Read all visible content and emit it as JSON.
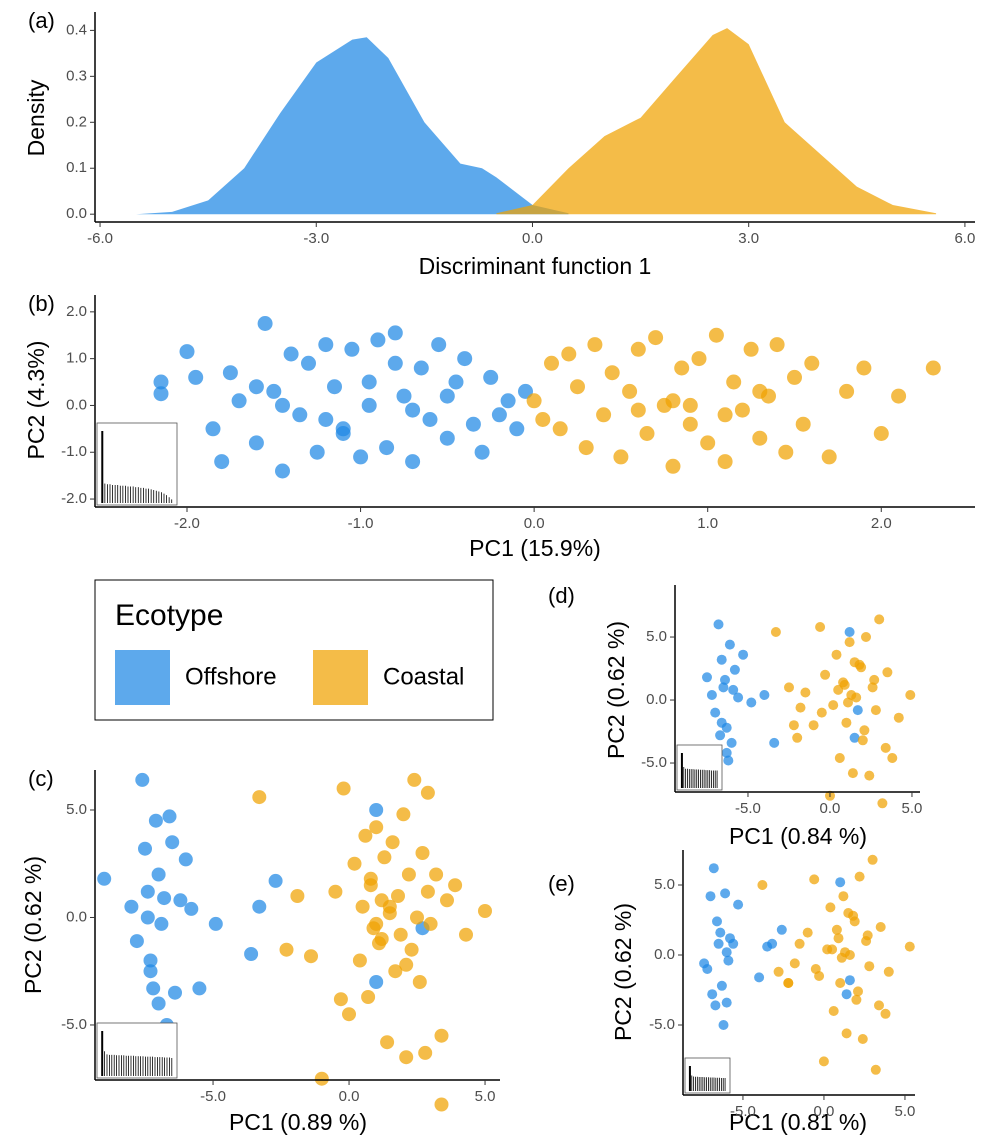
{
  "chart_data": [
    {
      "type": "area",
      "panel": "(a)",
      "x_label": "Discriminant function 1",
      "y_label": "Density",
      "legend_title": "Ecotype",
      "xlim": [
        -6.07,
        6.14
      ],
      "ylim": [
        -0.017,
        0.44
      ],
      "xticks": [
        {
          "value": -6,
          "label": "-6.0"
        },
        {
          "value": -3,
          "label": "-3.0"
        },
        {
          "value": 0,
          "label": "0.0"
        },
        {
          "value": 3,
          "label": "3.0"
        },
        {
          "value": 6,
          "label": "6.0"
        }
      ],
      "yticks": [
        {
          "value": 0,
          "label": "0.0"
        },
        {
          "value": 0.1,
          "label": "0.1"
        },
        {
          "value": 0.2,
          "label": "0.2"
        },
        {
          "value": 0.3,
          "label": "0.3"
        },
        {
          "value": 0.4,
          "label": "0.4"
        }
      ],
      "series": [
        {
          "name": "Offshore",
          "color": "#1E88E5",
          "x": [
            -5.5,
            -5,
            -4.5,
            -4,
            -3.5,
            -3,
            -2.5,
            -2.3,
            -2,
            -1.5,
            -1,
            -0.7,
            -0.5,
            0,
            0.5
          ],
          "values": [
            0,
            0.005,
            0.03,
            0.1,
            0.22,
            0.33,
            0.38,
            0.385,
            0.34,
            0.2,
            0.11,
            0.1,
            0.08,
            0.02,
            0.002
          ]
        },
        {
          "name": "Coastal",
          "color": "#F0A202",
          "x": [
            -0.5,
            0,
            0.5,
            1,
            1.5,
            2,
            2.5,
            2.7,
            3,
            3.5,
            4,
            4.5,
            5,
            5.6
          ],
          "values": [
            0.002,
            0.02,
            0.1,
            0.17,
            0.21,
            0.3,
            0.39,
            0.405,
            0.37,
            0.2,
            0.13,
            0.06,
            0.02,
            0.002
          ]
        }
      ]
    },
    {
      "type": "scatter",
      "panel": "(b)",
      "x_label": "PC1 (15.9%)",
      "y_label": "PC2 (4.3%)",
      "xlim": [
        -2.53,
        2.54
      ],
      "ylim": [
        -2.17,
        2.36
      ],
      "xticks": [
        {
          "value": -2,
          "label": "-2.0"
        },
        {
          "value": -1,
          "label": "-1.0"
        },
        {
          "value": 0,
          "label": "0.0"
        },
        {
          "value": 1,
          "label": "1.0"
        },
        {
          "value": 2,
          "label": "2.0"
        }
      ],
      "yticks": [
        {
          "value": -2,
          "label": "-2.0"
        },
        {
          "value": -1,
          "label": "-1.0"
        },
        {
          "value": 0,
          "label": "0.0"
        },
        {
          "value": 1,
          "label": "1.0"
        },
        {
          "value": 2,
          "label": "2.0"
        }
      ],
      "scree": [
        1,
        0.27,
        0.26,
        0.26,
        0.25,
        0.25,
        0.25,
        0.24,
        0.24,
        0.24,
        0.23,
        0.23,
        0.23,
        0.22,
        0.22,
        0.21,
        0.21,
        0.2,
        0.2,
        0.19,
        0.18,
        0.17,
        0.16,
        0.15,
        0.13,
        0.11,
        0.08,
        0.05
      ],
      "series": [
        {
          "name": "Offshore",
          "color": "#1E88E5",
          "x": [
            -2.15,
            -2.15,
            -2.0,
            -1.95,
            -1.85,
            -1.8,
            -1.75,
            -1.7,
            -1.6,
            -1.55,
            -1.5,
            -1.45,
            -1.4,
            -1.35,
            -1.3,
            -1.25,
            -1.2,
            -1.15,
            -1.1,
            -1.05,
            -1.0,
            -0.95,
            -0.9,
            -0.85,
            -0.8,
            -0.75,
            -0.7,
            -0.65,
            -0.6,
            -0.55,
            -0.5,
            -0.45,
            -0.4,
            -0.35,
            -0.3,
            -0.25,
            -0.2,
            -0.15,
            -0.1,
            -0.05,
            -1.45,
            -1.2,
            -0.95,
            -0.7,
            -0.5,
            -1.6,
            -1.1,
            -0.8
          ],
          "values": [
            0.5,
            0.25,
            1.15,
            0.6,
            -0.5,
            -1.2,
            0.7,
            0.1,
            -0.8,
            1.75,
            0.3,
            -1.4,
            1.1,
            -0.2,
            0.9,
            -1.0,
            1.3,
            0.4,
            -0.6,
            1.2,
            -1.1,
            0.0,
            1.4,
            -0.9,
            1.55,
            0.2,
            -1.2,
            0.8,
            -0.3,
            1.3,
            -0.7,
            0.5,
            1.0,
            -0.4,
            -1.0,
            0.6,
            -0.2,
            0.1,
            -0.5,
            0.3,
            0.0,
            -0.3,
            0.5,
            -0.1,
            0.2,
            0.4,
            -0.5,
            0.9
          ]
        },
        {
          "name": "Coastal",
          "color": "#F0A202",
          "x": [
            0.0,
            0.05,
            0.1,
            0.15,
            0.2,
            0.25,
            0.3,
            0.35,
            0.4,
            0.45,
            0.5,
            0.55,
            0.6,
            0.65,
            0.7,
            0.75,
            0.8,
            0.85,
            0.9,
            0.95,
            1.0,
            1.05,
            1.1,
            1.15,
            1.2,
            1.25,
            1.3,
            1.35,
            1.4,
            1.45,
            1.5,
            1.55,
            1.6,
            1.7,
            1.8,
            1.9,
            2.0,
            2.1,
            2.3,
            0.9,
            1.1,
            1.3,
            0.6,
            0.8
          ],
          "values": [
            0.1,
            -0.3,
            0.9,
            -0.5,
            1.1,
            0.4,
            -0.9,
            1.3,
            -0.2,
            0.7,
            -1.1,
            0.3,
            1.2,
            -0.6,
            1.45,
            0.0,
            -1.3,
            0.8,
            -0.4,
            1.0,
            -0.8,
            1.5,
            -1.2,
            0.5,
            -0.1,
            1.2,
            -0.7,
            0.2,
            1.3,
            -1.0,
            0.6,
            -0.4,
            0.9,
            -1.1,
            0.3,
            0.8,
            -0.6,
            0.2,
            0.8,
            0.0,
            -0.2,
            0.3,
            -0.1,
            0.1
          ]
        }
      ]
    },
    {
      "type": "scatter",
      "panel": "(c)",
      "x_label": "PC1 (0.89 %)",
      "y_label": "PC2 (0.62 %)",
      "xlim": [
        -9.34,
        5.55
      ],
      "ylim": [
        -7.56,
        6.86
      ],
      "xticks": [
        {
          "value": -5,
          "label": "-5.0"
        },
        {
          "value": 0,
          "label": "0.0"
        },
        {
          "value": 5,
          "label": "5.0"
        }
      ],
      "yticks": [
        {
          "value": -5,
          "label": "-5.0"
        },
        {
          "value": 0,
          "label": "0.0"
        },
        {
          "value": 5,
          "label": "5.0"
        }
      ],
      "scree": [
        1,
        0.55,
        0.48,
        0.47,
        0.47,
        0.47,
        0.46,
        0.46,
        0.46,
        0.46,
        0.45,
        0.45,
        0.45,
        0.45,
        0.44,
        0.44,
        0.44,
        0.44,
        0.43,
        0.43,
        0.43,
        0.43,
        0.42,
        0.42,
        0.42,
        0.42,
        0.41,
        0.41,
        0.41,
        0.4
      ],
      "series": [
        {
          "name": "Offshore",
          "color": "#1E88E5",
          "x": [
            -9.0,
            -8.0,
            -7.8,
            -7.6,
            -7.5,
            -7.4,
            -7.3,
            -7.2,
            -7.1,
            -7.0,
            -6.9,
            -6.8,
            -6.6,
            -6.5,
            -6.4,
            -6.2,
            -6.0,
            -5.8,
            -5.5,
            -4.9,
            -3.3,
            -2.7,
            -3.6,
            1.0,
            1.0,
            2.7,
            -7.3,
            -7.0,
            -6.7,
            -7.4
          ],
          "values": [
            1.8,
            0.5,
            -1.1,
            6.4,
            3.2,
            1.2,
            -2.0,
            -3.3,
            4.5,
            2.0,
            -0.3,
            0.9,
            4.7,
            3.5,
            -3.5,
            0.8,
            2.7,
            0.4,
            -3.3,
            -0.3,
            0.5,
            1.7,
            -1.7,
            5.0,
            -3.0,
            -0.5,
            -2.5,
            -4.0,
            -5.0,
            0.0
          ]
        },
        {
          "name": "Coastal",
          "color": "#F0A202",
          "x": [
            -3.3,
            -1.9,
            -1.4,
            -1.0,
            -0.5,
            -0.2,
            0.0,
            0.2,
            0.4,
            0.5,
            0.6,
            0.7,
            0.8,
            0.9,
            1.0,
            1.1,
            1.2,
            1.3,
            1.4,
            1.5,
            1.6,
            1.7,
            1.8,
            1.9,
            2.0,
            2.1,
            2.2,
            2.3,
            2.4,
            2.5,
            2.6,
            2.7,
            2.8,
            2.9,
            3.0,
            3.2,
            3.4,
            3.6,
            3.9,
            4.3,
            5.0,
            -0.3,
            1.2,
            1.5,
            2.1,
            0.8,
            1.0,
            2.9,
            3.4,
            -2.3
          ],
          "values": [
            5.6,
            1.0,
            -1.8,
            -7.5,
            1.2,
            6.0,
            -4.5,
            2.5,
            -2.0,
            0.5,
            3.8,
            -3.7,
            1.5,
            -0.5,
            4.2,
            -1.2,
            0.8,
            2.8,
            -5.8,
            0.2,
            3.5,
            -2.5,
            1.0,
            -0.8,
            4.8,
            -6.5,
            2.0,
            -1.5,
            6.4,
            0.0,
            -3.0,
            3.0,
            -6.3,
            1.2,
            -0.3,
            2.0,
            -8.7,
            0.8,
            1.5,
            -0.8,
            0.3,
            -3.8,
            -1.0,
            0.5,
            -2.2,
            1.8,
            -0.3,
            5.8,
            -5.5,
            -1.5
          ]
        }
      ]
    },
    {
      "type": "scatter",
      "panel": "(d)",
      "x_label": "PC1 (0.84 %)",
      "y_label": "PC2 (0.62 %)",
      "xlim": [
        -9.45,
        5.49
      ],
      "ylim": [
        -7.3,
        9.13
      ],
      "xticks": [
        {
          "value": -5,
          "label": "-5.0"
        },
        {
          "value": 0,
          "label": "0.0"
        },
        {
          "value": 5,
          "label": "5.0"
        }
      ],
      "yticks": [
        {
          "value": -5,
          "label": "-5.0"
        },
        {
          "value": 0,
          "label": "0.0"
        },
        {
          "value": 5,
          "label": "5.0"
        }
      ],
      "scree": [
        1,
        0.6,
        0.55,
        0.55,
        0.54,
        0.54,
        0.54,
        0.53,
        0.53,
        0.53,
        0.52,
        0.52,
        0.52,
        0.51,
        0.51,
        0.51,
        0.5,
        0.5,
        0.5,
        0.5
      ],
      "series": [
        {
          "name": "Offshore",
          "color": "#1E88E5",
          "x": [
            -7.5,
            -7.2,
            -7.0,
            -6.8,
            -6.6,
            -6.5,
            -6.3,
            -6.1,
            -6.0,
            -5.8,
            -5.6,
            -5.3,
            -4.8,
            -4.0,
            -3.4,
            -7.0,
            -6.7,
            -6.4,
            -6.2,
            -5.9,
            1.2,
            1.7,
            1.5,
            -6.6,
            -6.3
          ],
          "values": [
            1.8,
            0.4,
            -1.0,
            6.0,
            3.2,
            1.0,
            -2.2,
            4.4,
            -3.4,
            2.4,
            0.2,
            3.6,
            -0.2,
            0.4,
            -3.4,
            -4.2,
            -2.8,
            1.6,
            -4.8,
            0.8,
            5.4,
            -0.8,
            -3.0,
            -1.8,
            -4.2
          ]
        },
        {
          "name": "Coastal",
          "color": "#F0A202",
          "x": [
            -3.3,
            -2.5,
            -2.0,
            -1.5,
            -1.0,
            -0.6,
            -0.3,
            0.0,
            0.2,
            0.4,
            0.6,
            0.8,
            1.0,
            1.2,
            1.4,
            1.6,
            1.8,
            2.0,
            2.2,
            2.4,
            2.6,
            2.8,
            3.0,
            3.2,
            3.5,
            3.8,
            4.2,
            4.9,
            -0.5,
            0.5,
            1.1,
            1.5,
            2.1,
            2.7,
            -1.8,
            0.9,
            1.3,
            3.4,
            -2.2,
            1.9
          ],
          "values": [
            5.4,
            1.0,
            -3.0,
            0.6,
            -2.0,
            5.8,
            2.0,
            -7.6,
            -0.4,
            3.6,
            -4.6,
            1.4,
            -1.8,
            4.6,
            -5.8,
            0.2,
            2.8,
            -3.2,
            5.0,
            -6.0,
            1.0,
            -0.8,
            6.4,
            -8.2,
            2.2,
            -4.6,
            -1.4,
            0.4,
            -1.0,
            0.8,
            -0.2,
            3.0,
            -2.4,
            1.6,
            -0.6,
            1.2,
            0.4,
            -3.8,
            -2.0,
            2.6
          ]
        }
      ]
    },
    {
      "type": "scatter",
      "panel": "(e)",
      "x_label": "PC1 (0.81 %)",
      "y_label": "PC2 (0.62 %)",
      "xlim": [
        -8.7,
        5.62
      ],
      "ylim": [
        -10,
        7.5
      ],
      "xticks": [
        {
          "value": -5,
          "label": "-5.0"
        },
        {
          "value": 0,
          "label": "0.0"
        },
        {
          "value": 5,
          "label": "5.0"
        }
      ],
      "yticks": [
        {
          "value": -5,
          "label": "-5.0"
        },
        {
          "value": 0,
          "label": "0.0"
        },
        {
          "value": 5,
          "label": "5.0"
        }
      ],
      "scree": [
        1,
        0.62,
        0.58,
        0.57,
        0.57,
        0.56,
        0.56,
        0.56,
        0.55,
        0.55,
        0.55,
        0.54,
        0.54,
        0.54,
        0.53,
        0.53,
        0.53,
        0.52,
        0.52,
        0.52
      ],
      "series": [
        {
          "name": "Offshore",
          "color": "#1E88E5",
          "x": [
            -7.4,
            -7.0,
            -6.8,
            -6.6,
            -6.5,
            -6.3,
            -6.1,
            -6.0,
            -5.8,
            -5.6,
            -5.3,
            -4.0,
            -3.5,
            -3.2,
            -2.6,
            -7.2,
            -6.9,
            -6.4,
            -6.2,
            -5.9,
            1.0,
            1.6,
            1.4,
            -6.7,
            -6.0
          ],
          "values": [
            -0.6,
            4.2,
            6.2,
            2.4,
            0.8,
            -2.2,
            4.4,
            -3.4,
            1.2,
            0.8,
            3.6,
            -1.6,
            0.6,
            0.8,
            1.8,
            -1.0,
            -2.8,
            1.6,
            -5.0,
            -0.4,
            5.2,
            -1.8,
            -2.8,
            -3.6,
            0.2
          ]
        },
        {
          "name": "Coastal",
          "color": "#F0A202",
          "x": [
            -3.8,
            -2.8,
            -2.2,
            -1.5,
            -1.0,
            -0.6,
            -0.3,
            0.0,
            0.2,
            0.4,
            0.6,
            0.8,
            1.0,
            1.2,
            1.4,
            1.6,
            1.8,
            2.0,
            2.2,
            2.4,
            2.6,
            2.8,
            3.0,
            3.2,
            3.5,
            3.8,
            4.0,
            5.3,
            -0.5,
            0.5,
            1.1,
            1.5,
            2.1,
            2.7,
            -1.8,
            0.9,
            1.3,
            3.4,
            -2.2,
            1.9
          ],
          "values": [
            5.0,
            -1.2,
            -2.0,
            0.8,
            1.6,
            5.4,
            -1.5,
            -7.6,
            0.4,
            3.4,
            -4.0,
            1.8,
            -2.0,
            4.2,
            -5.6,
            0.0,
            2.8,
            -3.2,
            5.6,
            -6.0,
            1.0,
            -0.8,
            6.8,
            -8.2,
            2.0,
            -4.2,
            -1.2,
            0.6,
            -1.0,
            0.4,
            -0.2,
            3.0,
            -2.6,
            1.4,
            -0.6,
            1.2,
            0.2,
            -3.6,
            -2.0,
            2.4
          ]
        }
      ]
    }
  ]
}
